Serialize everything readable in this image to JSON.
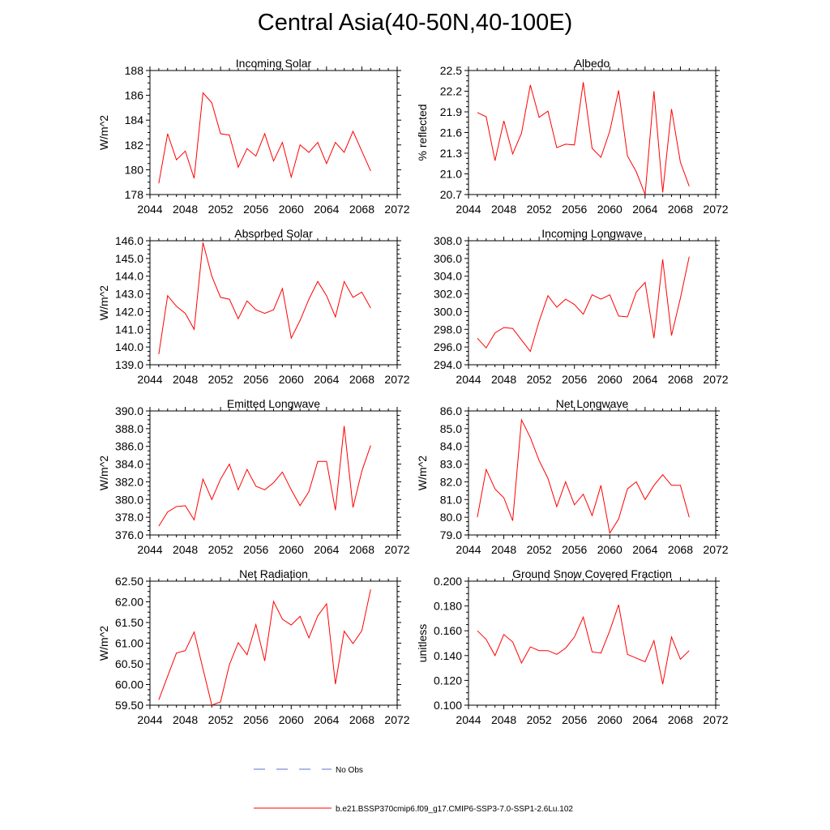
{
  "figure": {
    "title": "Central Asia(40-50N,40-100E)",
    "line_color": "#ff0000",
    "obs_color": "#5b6fd6"
  },
  "legend": {
    "obs_label": "No Obs",
    "model_label": "b.e21.BSSP370cmip6.f09_g17.CMIP6-SSP3-7.0-SSP1-2.6Lu.102"
  },
  "chart_data": [
    {
      "type": "line",
      "title": "Incoming Solar",
      "ylabel": "W/m^2",
      "xlim": [
        2044,
        2072
      ],
      "ylim": [
        178,
        188
      ],
      "xticks": [
        2044,
        2048,
        2052,
        2056,
        2060,
        2064,
        2068,
        2072
      ],
      "yticks": [
        178,
        180,
        182,
        184,
        186,
        188
      ],
      "ytick_labels": [
        "178",
        "180",
        "182",
        "184",
        "186",
        "188"
      ],
      "grid": false,
      "series": [
        {
          "x": [
            2045,
            2046,
            2047,
            2048,
            2049,
            2050,
            2051,
            2052,
            2053,
            2054,
            2055,
            2056,
            2057,
            2058,
            2059,
            2060,
            2061,
            2062,
            2063,
            2064,
            2065,
            2066,
            2067,
            2068,
            2069
          ],
          "values": [
            178.9,
            182.9,
            180.8,
            181.5,
            179.3,
            186.2,
            185.4,
            182.9,
            182.8,
            180.2,
            181.7,
            181.1,
            182.9,
            180.7,
            182.2,
            179.4,
            182.0,
            181.4,
            182.2,
            180.5,
            182.2,
            181.4,
            183.1,
            181.5,
            179.9
          ]
        }
      ]
    },
    {
      "type": "line",
      "title": "Albedo",
      "ylabel": "% reflected",
      "xlim": [
        2044,
        2072
      ],
      "ylim": [
        20.7,
        22.5
      ],
      "xticks": [
        2044,
        2048,
        2052,
        2056,
        2060,
        2064,
        2068,
        2072
      ],
      "yticks": [
        20.7,
        21.0,
        21.3,
        21.6,
        21.9,
        22.2,
        22.5
      ],
      "ytick_labels": [
        "20.7",
        "21.0",
        "21.3",
        "21.6",
        "21.9",
        "22.2",
        "22.5"
      ],
      "grid": false,
      "series": [
        {
          "x": [
            2045,
            2046,
            2047,
            2048,
            2049,
            2050,
            2051,
            2052,
            2053,
            2054,
            2055,
            2056,
            2057,
            2058,
            2059,
            2060,
            2061,
            2062,
            2063,
            2064,
            2065,
            2066,
            2067,
            2068,
            2069
          ],
          "values": [
            21.89,
            21.83,
            21.19,
            21.77,
            21.29,
            21.59,
            22.29,
            21.82,
            21.91,
            21.38,
            21.43,
            21.42,
            22.33,
            21.37,
            21.24,
            21.62,
            22.21,
            21.26,
            21.03,
            20.7,
            22.2,
            20.73,
            21.94,
            21.17,
            20.82
          ]
        }
      ]
    },
    {
      "type": "line",
      "title": "Absorbed Solar",
      "ylabel": "W/m^2",
      "xlim": [
        2044,
        2072
      ],
      "ylim": [
        139.0,
        146.0
      ],
      "xticks": [
        2044,
        2048,
        2052,
        2056,
        2060,
        2064,
        2068,
        2072
      ],
      "yticks": [
        139,
        140,
        141,
        142,
        143,
        144,
        145,
        146
      ],
      "ytick_labels": [
        "139.0",
        "140.0",
        "141.0",
        "142.0",
        "143.0",
        "144.0",
        "145.0",
        "146.0"
      ],
      "grid": false,
      "series": [
        {
          "x": [
            2045,
            2046,
            2047,
            2048,
            2049,
            2050,
            2051,
            2052,
            2053,
            2054,
            2055,
            2056,
            2057,
            2058,
            2059,
            2060,
            2061,
            2062,
            2063,
            2064,
            2065,
            2066,
            2067,
            2068,
            2069
          ],
          "values": [
            139.6,
            142.9,
            142.3,
            141.9,
            141.0,
            145.9,
            144.0,
            142.8,
            142.7,
            141.6,
            142.6,
            142.1,
            141.9,
            142.1,
            143.3,
            140.5,
            141.5,
            142.7,
            143.7,
            142.9,
            141.7,
            143.7,
            142.8,
            143.1,
            142.2
          ]
        }
      ]
    },
    {
      "type": "line",
      "title": "Incoming Longwave",
      "ylabel": "",
      "xlim": [
        2044,
        2072
      ],
      "ylim": [
        294.0,
        308.0
      ],
      "xticks": [
        2044,
        2048,
        2052,
        2056,
        2060,
        2064,
        2068,
        2072
      ],
      "yticks": [
        294,
        296,
        298,
        300,
        302,
        304,
        306,
        308
      ],
      "ytick_labels": [
        "294.0",
        "296.0",
        "298.0",
        "300.0",
        "302.0",
        "304.0",
        "306.0",
        "308.0"
      ],
      "grid": false,
      "series": [
        {
          "x": [
            2045,
            2046,
            2047,
            2048,
            2049,
            2050,
            2051,
            2052,
            2053,
            2054,
            2055,
            2056,
            2057,
            2058,
            2059,
            2060,
            2061,
            2062,
            2063,
            2064,
            2065,
            2066,
            2067,
            2068,
            2069
          ],
          "values": [
            297.0,
            295.9,
            297.6,
            298.2,
            298.1,
            296.8,
            295.5,
            298.9,
            301.8,
            300.5,
            301.4,
            300.8,
            299.7,
            301.9,
            301.4,
            301.9,
            299.5,
            299.4,
            302.2,
            303.3,
            297.0,
            305.9,
            297.3,
            301.5,
            306.2
          ]
        }
      ]
    },
    {
      "type": "line",
      "title": "Emitted Longwave",
      "ylabel": "W/m^2",
      "xlim": [
        2044,
        2072
      ],
      "ylim": [
        376.0,
        390.0
      ],
      "xticks": [
        2044,
        2048,
        2052,
        2056,
        2060,
        2064,
        2068,
        2072
      ],
      "yticks": [
        376,
        378,
        380,
        382,
        384,
        386,
        388,
        390
      ],
      "ytick_labels": [
        "376.0",
        "378.0",
        "380.0",
        "382.0",
        "384.0",
        "386.0",
        "388.0",
        "390.0"
      ],
      "grid": false,
      "series": [
        {
          "x": [
            2045,
            2046,
            2047,
            2048,
            2049,
            2050,
            2051,
            2052,
            2053,
            2054,
            2055,
            2056,
            2057,
            2058,
            2059,
            2060,
            2061,
            2062,
            2063,
            2064,
            2065,
            2066,
            2067,
            2068,
            2069
          ],
          "values": [
            377.0,
            378.6,
            379.2,
            379.3,
            377.7,
            382.3,
            380.0,
            382.3,
            384.0,
            381.1,
            383.4,
            381.5,
            381.1,
            381.9,
            383.1,
            381.1,
            379.3,
            380.9,
            384.3,
            384.3,
            378.8,
            388.3,
            379.1,
            383.2,
            386.1
          ]
        }
      ]
    },
    {
      "type": "line",
      "title": "Net Longwave",
      "ylabel": "W/m^2",
      "xlim": [
        2044,
        2072
      ],
      "ylim": [
        79.0,
        86.0
      ],
      "xticks": [
        2044,
        2048,
        2052,
        2056,
        2060,
        2064,
        2068,
        2072
      ],
      "yticks": [
        79,
        80,
        81,
        82,
        83,
        84,
        85,
        86
      ],
      "ytick_labels": [
        "79.0",
        "80.0",
        "81.0",
        "82.0",
        "83.0",
        "84.0",
        "85.0",
        "86.0"
      ],
      "grid": false,
      "series": [
        {
          "x": [
            2045,
            2046,
            2047,
            2048,
            2049,
            2050,
            2051,
            2052,
            2053,
            2054,
            2055,
            2056,
            2057,
            2058,
            2059,
            2060,
            2061,
            2062,
            2063,
            2064,
            2065,
            2066,
            2067,
            2068,
            2069
          ],
          "values": [
            80.0,
            82.7,
            81.6,
            81.1,
            79.8,
            85.5,
            84.5,
            83.2,
            82.2,
            80.6,
            82.0,
            80.7,
            81.3,
            80.1,
            81.8,
            79.1,
            79.9,
            81.6,
            82.0,
            81.0,
            81.8,
            82.4,
            81.8,
            81.8,
            80.0
          ]
        }
      ]
    },
    {
      "type": "line",
      "title": "Net Radiation",
      "ylabel": "W/m^2",
      "xlim": [
        2044,
        2072
      ],
      "ylim": [
        59.5,
        62.5
      ],
      "xticks": [
        2044,
        2048,
        2052,
        2056,
        2060,
        2064,
        2068,
        2072
      ],
      "yticks": [
        59.5,
        60.0,
        60.5,
        61.0,
        61.5,
        62.0,
        62.5
      ],
      "ytick_labels": [
        "59.50",
        "60.00",
        "60.50",
        "61.00",
        "61.50",
        "62.00",
        "62.50"
      ],
      "grid": false,
      "series": [
        {
          "x": [
            2045,
            2046,
            2047,
            2048,
            2049,
            2050,
            2051,
            2052,
            2053,
            2054,
            2055,
            2056,
            2057,
            2058,
            2059,
            2060,
            2061,
            2062,
            2063,
            2064,
            2065,
            2066,
            2067,
            2068,
            2069
          ],
          "values": [
            59.63,
            60.2,
            60.76,
            60.82,
            61.27,
            60.38,
            59.5,
            59.58,
            60.48,
            61.01,
            60.72,
            61.45,
            60.57,
            62.01,
            61.58,
            61.44,
            61.65,
            61.13,
            61.66,
            61.95,
            60.01,
            61.29,
            60.99,
            61.3,
            62.3
          ]
        }
      ]
    },
    {
      "type": "line",
      "title": "Ground Snow Covered Fraction",
      "ylabel": "unitless",
      "xlim": [
        2044,
        2072
      ],
      "ylim": [
        0.1,
        0.2
      ],
      "xticks": [
        2044,
        2048,
        2052,
        2056,
        2060,
        2064,
        2068,
        2072
      ],
      "yticks": [
        0.1,
        0.12,
        0.14,
        0.16,
        0.18,
        0.2
      ],
      "ytick_labels": [
        "0.100",
        "0.120",
        "0.140",
        "0.160",
        "0.180",
        "0.200"
      ],
      "grid": false,
      "series": [
        {
          "x": [
            2045,
            2046,
            2047,
            2048,
            2049,
            2050,
            2051,
            2052,
            2053,
            2054,
            2055,
            2056,
            2057,
            2058,
            2059,
            2060,
            2061,
            2062,
            2063,
            2064,
            2065,
            2066,
            2067,
            2068,
            2069
          ],
          "values": [
            0.16,
            0.153,
            0.14,
            0.157,
            0.151,
            0.134,
            0.147,
            0.144,
            0.144,
            0.141,
            0.146,
            0.155,
            0.171,
            0.143,
            0.142,
            0.16,
            0.181,
            0.141,
            0.138,
            0.135,
            0.152,
            0.117,
            0.155,
            0.137,
            0.144
          ]
        }
      ]
    }
  ]
}
